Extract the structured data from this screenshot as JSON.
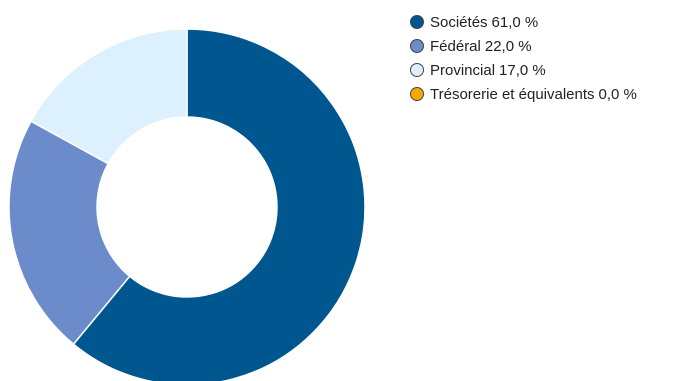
{
  "chart_data": {
    "type": "pie",
    "title": "",
    "hole": true,
    "legend_position": "right",
    "series": [
      {
        "name": "Sociétés",
        "value": 61.0,
        "value_label": "61,0 %",
        "color": "#00568F"
      },
      {
        "name": "Fédéral",
        "value": 22.0,
        "value_label": "22,0 %",
        "color": "#6B8BCB"
      },
      {
        "name": "Provincial",
        "value": 17.0,
        "value_label": "17,0 %",
        "color": "#DDF0FD"
      },
      {
        "name": "Trésorerie et équivalents",
        "value": 0.0,
        "value_label": "0,0 %",
        "color": "#F5A800"
      }
    ]
  }
}
